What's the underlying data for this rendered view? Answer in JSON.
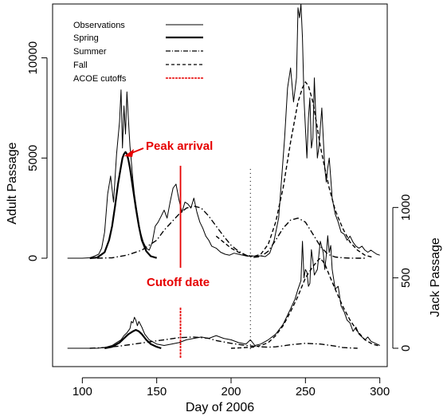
{
  "chart_data": {
    "type": "line",
    "title": "",
    "xlabel": "Day of 2006",
    "ylabel_left": "Adult Passage",
    "ylabel_right": "Jack Passage",
    "xlim": [
      80,
      305
    ],
    "x_ticks": [
      "100",
      "150",
      "200",
      "250",
      "300"
    ],
    "x_tick_values": [
      100,
      150,
      200,
      250,
      300
    ],
    "y_ticks_left": [
      "0",
      "5000",
      "10000"
    ],
    "y_tick_values_left": [
      0,
      5000,
      10000
    ],
    "y_ticks_right": [
      "0",
      "500",
      "1000"
    ],
    "y_tick_values_right": [
      0,
      500,
      1000
    ],
    "grid": false,
    "legend_position": "top-left",
    "legend": [
      {
        "label": "Observations",
        "style": "thin-solid",
        "color": "#000000"
      },
      {
        "label": "Spring",
        "style": "thick-solid",
        "color": "#000000"
      },
      {
        "label": "Summer",
        "style": "dash-dot",
        "color": "#000000"
      },
      {
        "label": "Fall",
        "style": "dashed",
        "color": "#000000"
      },
      {
        "label": "ACOE cutoffs",
        "style": "red-dashed",
        "color": "#e60000"
      }
    ],
    "annotations": [
      {
        "text": "Peak arrival",
        "x": 129,
        "y": 5300
      },
      {
        "text": "Cutoff date",
        "x": 165,
        "y": -1700
      }
    ],
    "cutoffs": [
      {
        "day": 166,
        "color": "#e60000",
        "style": "red-dashed"
      },
      {
        "day": 213,
        "color": "#000000",
        "style": "dotted"
      }
    ],
    "adult": {
      "observations": {
        "x": [
          90,
          95,
          100,
          105,
          108,
          111,
          113,
          115,
          117,
          119,
          121,
          123,
          125,
          126,
          127,
          128,
          129,
          130,
          131,
          132,
          133,
          134,
          135,
          137,
          139,
          141,
          143,
          145,
          147,
          149,
          151,
          153,
          155,
          157,
          159,
          161,
          163,
          165,
          167,
          169,
          171,
          173,
          175,
          177,
          179,
          181,
          183,
          185,
          187,
          190,
          193,
          196,
          199,
          202,
          205,
          208,
          211,
          214,
          217,
          220,
          223,
          226,
          229,
          232,
          234,
          236,
          238,
          240,
          242,
          244,
          245,
          246,
          247,
          248,
          249,
          250,
          251,
          252,
          253,
          254,
          255,
          256,
          257,
          258,
          259,
          260,
          261,
          262,
          263,
          264,
          265,
          266,
          267,
          268,
          269,
          270,
          272,
          274,
          276,
          278,
          280,
          282,
          284,
          286,
          288,
          290,
          292,
          294,
          296,
          298,
          300
        ],
        "y": [
          0,
          0,
          0,
          20,
          100,
          200,
          500,
          1300,
          3200,
          4100,
          2800,
          5200,
          6800,
          8400,
          5500,
          7600,
          6200,
          8300,
          6900,
          5600,
          4800,
          3900,
          3200,
          2200,
          1300,
          800,
          500,
          400,
          800,
          1600,
          1800,
          2100,
          2400,
          2000,
          2800,
          3500,
          3700,
          2900,
          2300,
          2800,
          2700,
          2500,
          3000,
          2300,
          1800,
          1500,
          1100,
          900,
          600,
          500,
          300,
          200,
          150,
          250,
          200,
          150,
          100,
          120,
          100,
          120,
          80,
          250,
          900,
          2000,
          4000,
          6000,
          8500,
          9500,
          7800,
          9000,
          12500,
          12000,
          13000,
          11000,
          8000,
          6500,
          5000,
          7000,
          8000,
          5500,
          6000,
          9000,
          7000,
          5000,
          5500,
          6500,
          7500,
          6000,
          4500,
          3800,
          4500,
          5000,
          4000,
          3000,
          2600,
          2200,
          1800,
          1300,
          1200,
          900,
          1100,
          800,
          600,
          500,
          600,
          400,
          300,
          400,
          300,
          200,
          150
        ],
        "style": "thin-solid"
      },
      "spring": {
        "x": [
          105,
          110,
          115,
          118,
          120,
          122,
          124,
          126,
          127,
          128,
          129,
          130,
          131,
          132,
          134,
          136,
          138,
          140,
          143,
          146,
          150
        ],
        "y": [
          0,
          30,
          300,
          900,
          1600,
          2600,
          3700,
          4600,
          5000,
          5200,
          5300,
          5200,
          4900,
          4500,
          3500,
          2500,
          1600,
          900,
          350,
          100,
          10
        ],
        "style": "thick-solid"
      },
      "summer": {
        "x": [
          110,
          120,
          130,
          140,
          150,
          155,
          160,
          165,
          170,
          175,
          180,
          185,
          190,
          195,
          200,
          205,
          210,
          215,
          220,
          225,
          230,
          235,
          240,
          245,
          250,
          255,
          260,
          265,
          270,
          275,
          280,
          285,
          290
        ],
        "y": [
          0,
          20,
          150,
          400,
          900,
          1400,
          1800,
          2200,
          2500,
          2600,
          2500,
          2100,
          1600,
          1100,
          650,
          350,
          150,
          40,
          80,
          350,
          900,
          1500,
          1900,
          2000,
          1800,
          1200,
          600,
          200,
          60,
          20,
          5,
          0,
          0
        ],
        "style": "dash-dot"
      },
      "fall": {
        "x": [
          190,
          195,
          200,
          205,
          210,
          215,
          220,
          225,
          230,
          235,
          240,
          245,
          248,
          250,
          252,
          255,
          258,
          260,
          263,
          266,
          270,
          275,
          280,
          285,
          290,
          295
        ],
        "y": [
          1100,
          800,
          500,
          300,
          150,
          80,
          200,
          700,
          1800,
          3500,
          5800,
          7800,
          8500,
          8800,
          8600,
          7800,
          6500,
          5600,
          4500,
          3500,
          2400,
          1500,
          800,
          400,
          150,
          50
        ],
        "style": "dashed"
      }
    },
    "jack": {
      "observations": {
        "x": [
          90,
          100,
          110,
          115,
          120,
          123,
          126,
          128,
          130,
          132,
          133,
          134,
          135,
          136,
          137,
          138,
          140,
          142,
          145,
          150,
          155,
          160,
          165,
          170,
          175,
          180,
          185,
          190,
          195,
          200,
          205,
          210,
          213,
          216,
          220,
          225,
          230,
          235,
          240,
          243,
          245,
          247,
          248,
          249,
          250,
          251,
          252,
          253,
          254,
          255,
          256,
          258,
          260,
          262,
          263,
          264,
          265,
          266,
          267,
          268,
          270,
          272,
          274,
          276,
          278,
          280,
          282,
          284,
          286,
          288,
          290,
          292,
          294,
          296,
          298,
          300
        ],
        "y": [
          0,
          0,
          0,
          5,
          20,
          40,
          60,
          90,
          110,
          140,
          190,
          180,
          220,
          200,
          160,
          190,
          150,
          100,
          60,
          30,
          20,
          30,
          40,
          60,
          70,
          80,
          70,
          90,
          70,
          60,
          40,
          30,
          60,
          20,
          30,
          60,
          100,
          170,
          280,
          350,
          420,
          480,
          760,
          500,
          560,
          540,
          440,
          460,
          700,
          620,
          520,
          560,
          760,
          680,
          560,
          660,
          800,
          680,
          730,
          560,
          420,
          440,
          300,
          260,
          200,
          180,
          120,
          150,
          100,
          80,
          60,
          80,
          50,
          40,
          30,
          20
        ],
        "style": "thin-solid"
      },
      "spring": {
        "x": [
          115,
          120,
          125,
          128,
          131,
          134,
          136,
          138,
          140,
          143,
          146,
          150,
          153
        ],
        "y": [
          0,
          10,
          40,
          70,
          100,
          120,
          130,
          120,
          100,
          60,
          30,
          10,
          0
        ],
        "style": "thick-solid"
      },
      "summer": {
        "x": [
          105,
          115,
          125,
          135,
          145,
          155,
          165,
          175,
          180,
          185,
          190,
          200,
          210,
          220,
          225,
          230,
          240,
          250,
          260,
          270,
          275,
          280,
          285
        ],
        "y": [
          0,
          5,
          15,
          30,
          45,
          60,
          75,
          80,
          75,
          70,
          55,
          35,
          20,
          10,
          8,
          10,
          25,
          35,
          30,
          15,
          5,
          2,
          0
        ],
        "style": "dash-dot"
      },
      "fall": {
        "x": [
          200,
          205,
          210,
          215,
          220,
          225,
          230,
          235,
          240,
          245,
          250,
          255,
          258,
          260,
          263,
          266,
          270,
          275,
          280,
          285,
          290,
          295,
          300
        ],
        "y": [
          0,
          2,
          5,
          8,
          20,
          40,
          90,
          160,
          260,
          370,
          500,
          580,
          620,
          640,
          600,
          520,
          420,
          300,
          200,
          120,
          60,
          30,
          15
        ],
        "style": "dashed"
      }
    }
  }
}
